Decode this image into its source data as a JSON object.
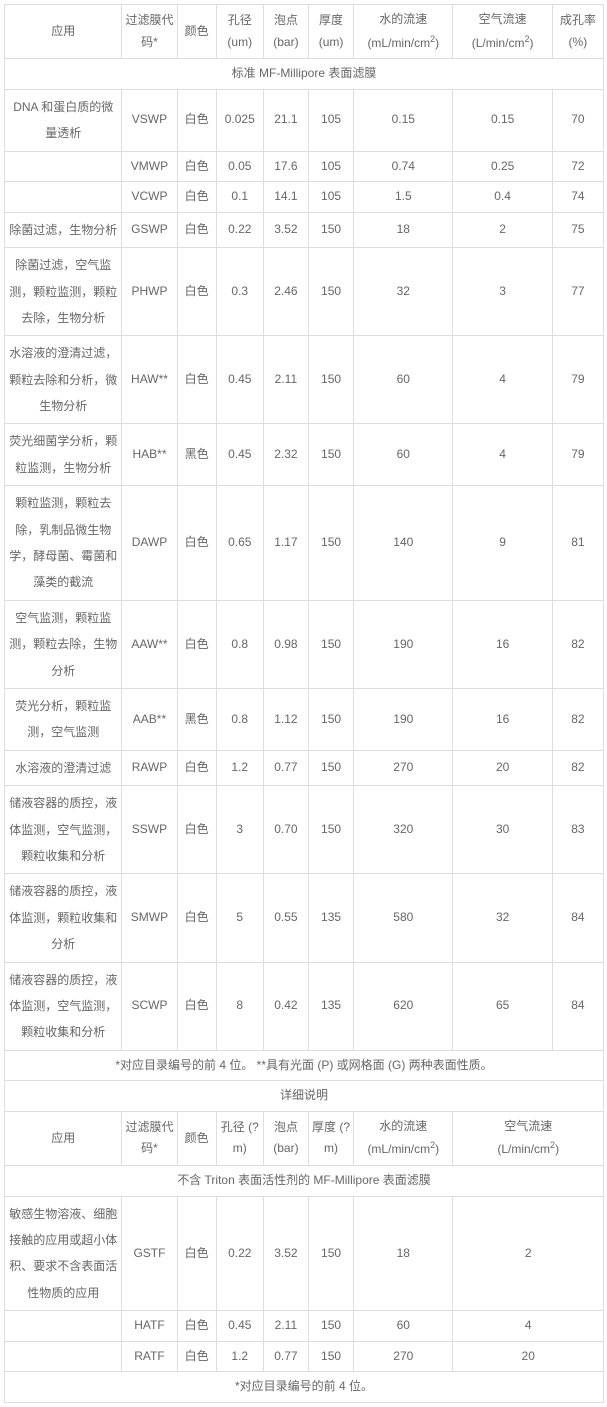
{
  "table1": {
    "headers": {
      "app": "应用",
      "code": "过滤膜代码*",
      "color": "颜色",
      "pore": "孔径 (um)",
      "bubble": "泡点 (bar)",
      "thick": "厚度 (um)",
      "water_l1": "水的流速",
      "water_l2": "(mL/min/cm",
      "water_sup": "2",
      "water_end": ")",
      "air_l1": "空气流速",
      "air_l2": "(L/min/cm",
      "air_sup": "2",
      "air_end": ")",
      "porosity": "成孔率 (%)"
    },
    "section": "标准 MF-Millipore 表面滤膜",
    "rows": [
      {
        "app": "DNA 和蛋白质的微量透析",
        "code": "VSWP",
        "color": "白色",
        "pore": "0.025",
        "bubble": "21.1",
        "thick": "105",
        "water": "0.15",
        "air": "0.15",
        "por": "70"
      },
      {
        "app": "",
        "code": "VMWP",
        "color": "白色",
        "pore": "0.05",
        "bubble": "17.6",
        "thick": "105",
        "water": "0.74",
        "air": "0.25",
        "por": "72"
      },
      {
        "app": "",
        "code": "VCWP",
        "color": "白色",
        "pore": "0.1",
        "bubble": "14.1",
        "thick": "105",
        "water": "1.5",
        "air": "0.4",
        "por": "74"
      },
      {
        "app": "除菌过滤，生物分析",
        "code": "GSWP",
        "color": "白色",
        "pore": "0.22",
        "bubble": "3.52",
        "thick": "150",
        "water": "18",
        "air": "2",
        "por": "75"
      },
      {
        "app": "除菌过滤，空气监测，颗粒监测，颗粒去除，生物分析",
        "code": "PHWP",
        "color": "白色",
        "pore": "0.3",
        "bubble": "2.46",
        "thick": "150",
        "water": "32",
        "air": "3",
        "por": "77"
      },
      {
        "app": "水溶液的澄清过滤，颗粒去除和分析，微生物分析",
        "code": "HAW**",
        "color": "白色",
        "pore": "0.45",
        "bubble": "2.11",
        "thick": "150",
        "water": "60",
        "air": "4",
        "por": "79"
      },
      {
        "app": "荧光细菌学分析，颗粒监测，生物分析",
        "code": "HAB**",
        "color": "黑色",
        "pore": "0.45",
        "bubble": "2.32",
        "thick": "150",
        "water": "60",
        "air": "4",
        "por": "79"
      },
      {
        "app": "颗粒监测，颗粒去除，乳制品微生物学，酵母菌、霉菌和藻类的截流",
        "code": "DAWP",
        "color": "白色",
        "pore": "0.65",
        "bubble": "1.17",
        "thick": "150",
        "water": "140",
        "air": "9",
        "por": "81"
      },
      {
        "app": "空气监测，颗粒监测，颗粒去除，生物分析",
        "code": "AAW**",
        "color": "白色",
        "pore": "0.8",
        "bubble": "0.98",
        "thick": "150",
        "water": "190",
        "air": "16",
        "por": "82"
      },
      {
        "app": "荧光分析，颗粒监测，空气监测",
        "code": "AAB**",
        "color": "黑色",
        "pore": "0.8",
        "bubble": "1.12",
        "thick": "150",
        "water": "190",
        "air": "16",
        "por": "82"
      },
      {
        "app": "水溶液的澄清过滤",
        "code": "RAWP",
        "color": "白色",
        "pore": "1.2",
        "bubble": "0.77",
        "thick": "150",
        "water": "270",
        "air": "20",
        "por": "82"
      },
      {
        "app": "储液容器的质控，液体监测，空气监测，颗粒收集和分析",
        "code": "SSWP",
        "color": "白色",
        "pore": "3",
        "bubble": "0.70",
        "thick": "150",
        "water": "320",
        "air": "30",
        "por": "83"
      },
      {
        "app": "储液容器的质控，液体监测，颗粒收集和分析",
        "code": "SMWP",
        "color": "白色",
        "pore": "5",
        "bubble": "0.55",
        "thick": "135",
        "water": "580",
        "air": "32",
        "por": "84"
      },
      {
        "app": "储液容器的质控，液体监测，空气监测，颗粒收集和分析",
        "code": "SCWP",
        "color": "白色",
        "pore": "8",
        "bubble": "0.42",
        "thick": "135",
        "water": "620",
        "air": "65",
        "por": "84"
      }
    ],
    "footnote": "*对应目录编号的前 4 位。  **具有光面 (P) 或网格面 (G) 两种表面性质。"
  },
  "table2": {
    "detailLabel": "详细说明",
    "headers": {
      "app": "应用",
      "code": "过滤膜代码*",
      "color": "颜色",
      "pore": "孔径 (?m)",
      "bubble": "泡点 (bar)",
      "thick": "厚度 (?m)",
      "water_l1": "水的流速",
      "water_l2": "(mL/min/cm",
      "water_sup": "2",
      "water_end": ")",
      "air_l1": "空气流速",
      "air_l2": "(L/min/cm",
      "air_sup": "2",
      "air_end": ")"
    },
    "section": "不含 Triton 表面活性剂的 MF-Millipore 表面滤膜",
    "rows": [
      {
        "app": "敏感生物溶液、细胞接触的应用或超小体积、要求不含表面活性物质的应用",
        "code": "GSTF",
        "color": "白色",
        "pore": "0.22",
        "bubble": "3.52",
        "thick": "150",
        "water": "18",
        "air": "2"
      },
      {
        "app": "",
        "code": "HATF",
        "color": "白色",
        "pore": "0.45",
        "bubble": "2.11",
        "thick": "150",
        "water": "60",
        "air": "4"
      },
      {
        "app": "",
        "code": "RATF",
        "color": "白色",
        "pore": "1.2",
        "bubble": "0.77",
        "thick": "150",
        "water": "270",
        "air": "20"
      }
    ],
    "footnote": "*对应目录编号的前 4 位。"
  },
  "colwidths1": {
    "app": 110,
    "code": 48,
    "color": 32,
    "pore": 40,
    "bubble": 38,
    "thick": 38,
    "water": 92,
    "air": 92,
    "por": 44
  },
  "colwidths2": {
    "app": 110,
    "code": 70,
    "color": 24,
    "pore": 38,
    "bubble": 38,
    "thick": 38,
    "water": 120,
    "air": 100
  }
}
